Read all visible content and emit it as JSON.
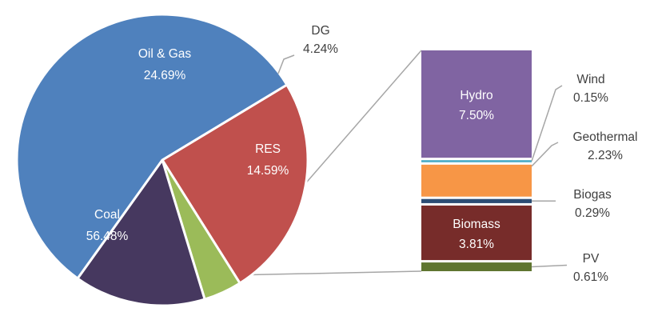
{
  "chart_data": {
    "type": "pie",
    "title": "",
    "pie": {
      "slices": [
        {
          "name": "Oil & Gas",
          "value": 24.69,
          "label": "24.69%",
          "color": "#C0504D"
        },
        {
          "name": "DG",
          "value": 4.24,
          "label": "4.24%",
          "color": "#9BBB59"
        },
        {
          "name": "RES",
          "value": 14.59,
          "label": "14.59%",
          "color": "#46385F"
        },
        {
          "name": "Coal",
          "value": 56.48,
          "label": "56.48%",
          "color": "#4F81BD"
        }
      ]
    },
    "breakdown": {
      "parent": "RES",
      "segments": [
        {
          "name": "Hydro",
          "value": 7.5,
          "label": "7.50%",
          "color": "#8064A2"
        },
        {
          "name": "Wind",
          "value": 0.15,
          "label": "0.15%",
          "color": "#4BACC6"
        },
        {
          "name": "Geothermal",
          "value": 2.23,
          "label": "2.23%",
          "color": "#F79646"
        },
        {
          "name": "Biogas",
          "value": 0.29,
          "label": "0.29%",
          "color": "#2C4D75"
        },
        {
          "name": "Biomass",
          "value": 3.81,
          "label": "3.81%",
          "color": "#772C2A"
        },
        {
          "name": "PV",
          "value": 0.61,
          "label": "0.61%",
          "color": "#5F7530"
        }
      ]
    }
  }
}
